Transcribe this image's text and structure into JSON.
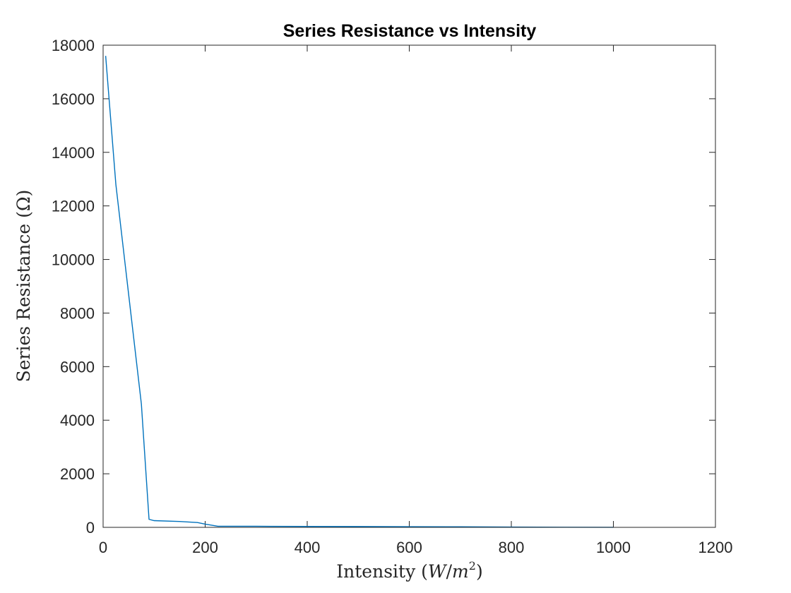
{
  "chart_data": {
    "type": "line",
    "title": "Series Resistance vs Intensity",
    "xlabel": {
      "prefix": "Intensity (",
      "var1": "W",
      "slash": "/",
      "var2": "m",
      "exponent": "2",
      "suffix": ")"
    },
    "ylabel": "Series Resistance (Ω)",
    "xlim": [
      0,
      1200
    ],
    "ylim": [
      0,
      18000
    ],
    "xticks": [
      0,
      200,
      400,
      600,
      800,
      1000,
      1200
    ],
    "yticks": [
      0,
      2000,
      4000,
      6000,
      8000,
      10000,
      12000,
      14000,
      16000,
      18000
    ],
    "grid": false,
    "series": [
      {
        "color": "#0072BD",
        "x": [
          5,
          25,
          50,
          75,
          90,
          100,
          150,
          185,
          200,
          225,
          300,
          400,
          500,
          600,
          700,
          800,
          900,
          1000
        ],
        "y": [
          17600,
          12800,
          8700,
          4600,
          300,
          250,
          220,
          180,
          120,
          40,
          40,
          35,
          30,
          25,
          20,
          12,
          6,
          3
        ]
      }
    ]
  }
}
